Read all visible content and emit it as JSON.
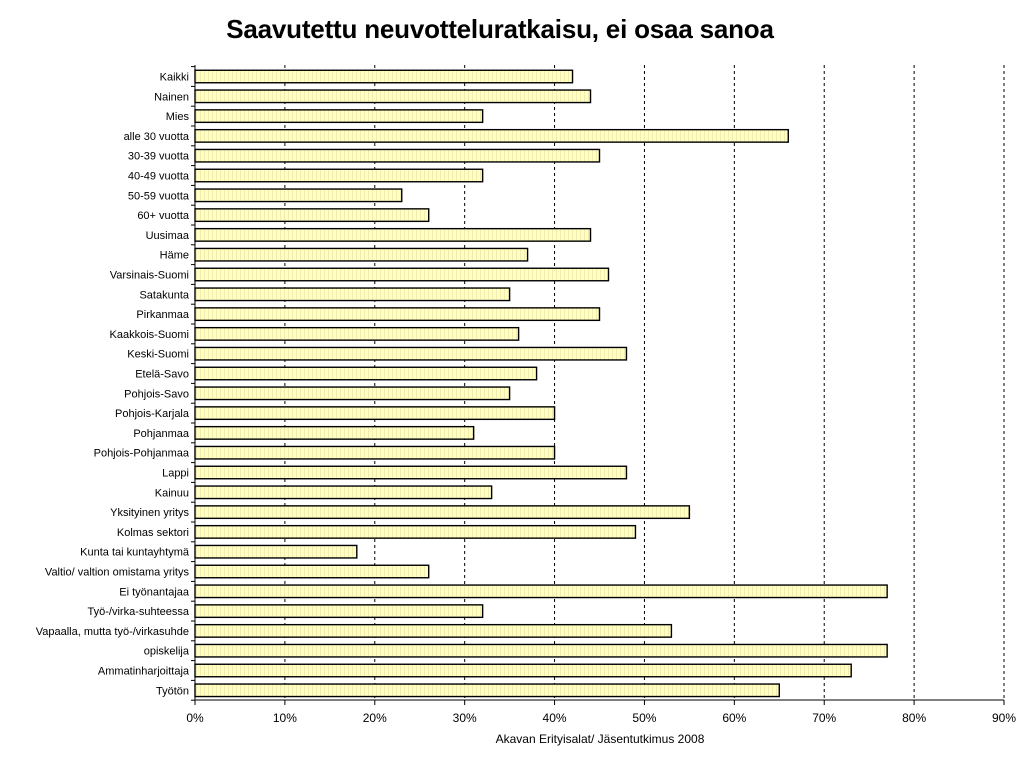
{
  "chart_data": {
    "type": "bar",
    "orientation": "horizontal",
    "title": "Saavutettu neuvotteluratkaisu, ei osaa sanoa",
    "categories": [
      "Kaikki",
      "Nainen",
      "Mies",
      "alle 30 vuotta",
      "30-39 vuotta",
      "40-49 vuotta",
      "50-59 vuotta",
      "60+ vuotta",
      "Uusimaa",
      "Häme",
      "Varsinais-Suomi",
      "Satakunta",
      "Pirkanmaa",
      "Kaakkois-Suomi",
      "Keski-Suomi",
      "Etelä-Savo",
      "Pohjois-Savo",
      "Pohjois-Karjala",
      "Pohjanmaa",
      "Pohjois-Pohjanmaa",
      "Lappi",
      "Kainuu",
      "Yksityinen yritys",
      "Kolmas sektori",
      "Kunta tai kuntayhtymä",
      "Valtio/ valtion omistama yritys",
      "Ei työnantajaa",
      "Työ-/virka-suhteessa",
      "Vapaalla, mutta työ-/virkasuhde",
      "opiskelija",
      "Ammatinharjoittaja",
      "Työtön"
    ],
    "values": [
      42,
      44,
      32,
      66,
      45,
      32,
      23,
      26,
      44,
      37,
      46,
      35,
      45,
      36,
      48,
      38,
      35,
      40,
      31,
      40,
      48,
      33,
      55,
      49,
      18,
      26,
      77,
      32,
      53,
      77,
      73,
      65
    ],
    "unit": "%",
    "xlim": [
      0,
      90
    ],
    "xticks": [
      "0%",
      "10%",
      "20%",
      "30%",
      "40%",
      "50%",
      "60%",
      "70%",
      "80%",
      "90%"
    ],
    "xlabel": "Akavan Erityisalat/ Jäsentutkimus 2008",
    "gridlines": "vertical dashed",
    "legend": "none",
    "bar_fill": "#ffffc0",
    "bar_stroke": "#000000"
  }
}
